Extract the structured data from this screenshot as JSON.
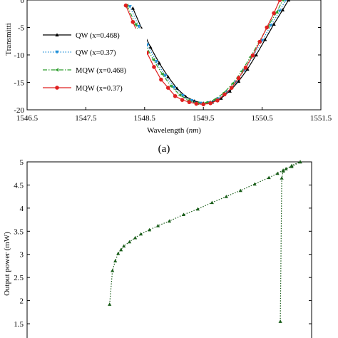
{
  "chart_data": [
    {
      "type": "line",
      "panel_label": "(a)",
      "xlabel_prefix": "Wavelength (",
      "xlabel_unit": "nm",
      "xlabel_suffix": ")",
      "ylabel": "Transmitti",
      "xlim": [
        1546.5,
        1551.5
      ],
      "ylim": [
        -20,
        0
      ],
      "xticks": [
        "1546.5",
        "1547.5",
        "1548.5",
        "1549.5",
        "1550.5",
        "1551.5"
      ],
      "xtick_values": [
        1546.5,
        1547.5,
        1548.5,
        1549.5,
        1550.5,
        1551.5
      ],
      "yticks": [
        "0",
        "-5",
        "-10",
        "-15",
        "-20"
      ],
      "ytick_values": [
        0,
        -5,
        -10,
        -15,
        -20
      ],
      "legend_placement": "left",
      "series": [
        {
          "name": "QW (x=0.468)",
          "color": "#000000",
          "marker": "triangle-up",
          "dash": "solid",
          "x": [
            1548.3,
            1548.45,
            1548.6,
            1548.75,
            1548.9,
            1549.05,
            1549.2,
            1549.35,
            1549.5,
            1549.65,
            1549.8,
            1549.95,
            1550.1,
            1550.25,
            1550.4,
            1550.55,
            1550.7,
            1550.85,
            1550.95
          ],
          "y": [
            -1.5,
            -5.2,
            -8.6,
            -11.5,
            -14.0,
            -16.1,
            -17.6,
            -18.4,
            -18.8,
            -18.6,
            -17.9,
            -16.6,
            -14.8,
            -12.6,
            -10.0,
            -7.2,
            -4.4,
            -1.8,
            0
          ]
        },
        {
          "name": "QW  (x=0.37)",
          "color": "#1f8fd8",
          "marker": "triangle-down",
          "dash": "dotted",
          "x": [
            1548.25,
            1548.4,
            1548.55,
            1548.7,
            1548.85,
            1549.0,
            1549.15,
            1549.3,
            1549.45,
            1549.6,
            1549.75,
            1549.9,
            1550.05,
            1550.2,
            1550.35,
            1550.5,
            1550.65,
            1550.8,
            1550.9
          ],
          "y": [
            -1.2,
            -4.8,
            -8.2,
            -11.2,
            -13.8,
            -15.9,
            -17.4,
            -18.3,
            -18.8,
            -18.7,
            -18.0,
            -16.8,
            -15.0,
            -12.8,
            -10.2,
            -7.4,
            -4.6,
            -2.0,
            0
          ]
        },
        {
          "name": "MQW (x=0.468)",
          "color": "#2e9e2e",
          "marker": "triangle-left",
          "dash": "dashdot",
          "x": [
            1548.2,
            1548.35,
            1548.5,
            1548.65,
            1548.8,
            1548.95,
            1549.1,
            1549.25,
            1549.4,
            1549.55,
            1549.7,
            1549.85,
            1550.0,
            1550.15,
            1550.3,
            1550.45,
            1550.6,
            1550.75,
            1550.85
          ],
          "y": [
            -1.0,
            -4.5,
            -7.9,
            -10.9,
            -13.5,
            -15.7,
            -17.3,
            -18.3,
            -18.8,
            -18.7,
            -18.1,
            -16.9,
            -15.2,
            -13.0,
            -10.4,
            -7.6,
            -4.8,
            -2.2,
            0
          ]
        },
        {
          "name": "MQW (x=0.37)",
          "color": "#e02020",
          "marker": "circle",
          "dash": "solid",
          "x": [
            1548.18,
            1548.3,
            1548.42,
            1548.54,
            1548.66,
            1548.78,
            1548.9,
            1549.02,
            1549.14,
            1549.26,
            1549.38,
            1549.5,
            1549.62,
            1549.74,
            1549.86,
            1549.98,
            1550.1,
            1550.22,
            1550.34,
            1550.46,
            1550.58,
            1550.7,
            1550.8
          ],
          "y": [
            -1.0,
            -4.0,
            -6.9,
            -9.6,
            -12.2,
            -14.5,
            -16.0,
            -17.5,
            -18.2,
            -18.6,
            -18.9,
            -19.0,
            -18.8,
            -18.3,
            -17.2,
            -16.0,
            -14.2,
            -12.3,
            -10.1,
            -7.6,
            -5.0,
            -2.4,
            0
          ]
        }
      ]
    },
    {
      "type": "line",
      "ylabel": "Output power (mW)",
      "ylim": [
        1.3,
        5
      ],
      "yticks": [
        "5",
        "4.5",
        "4",
        "3.5",
        "3",
        "2.5",
        "2",
        "1.5"
      ],
      "ytick_values": [
        5,
        4.5,
        4,
        3.5,
        3,
        2.5,
        2,
        1.5
      ],
      "xlim": [
        0,
        1
      ],
      "series": [
        {
          "name": "",
          "color": "#1a5e1a",
          "marker": "triangle-up",
          "dash": "dotted",
          "x": [
            0.29,
            0.3,
            0.31,
            0.32,
            0.33,
            0.34,
            0.36,
            0.38,
            0.4,
            0.43,
            0.46,
            0.5,
            0.55,
            0.6,
            0.65,
            0.7,
            0.75,
            0.8,
            0.85,
            0.88,
            0.9,
            0.93,
            0.96
          ],
          "y": [
            1.92,
            2.65,
            2.86,
            3.02,
            3.1,
            3.18,
            3.27,
            3.36,
            3.44,
            3.53,
            3.62,
            3.72,
            3.86,
            3.98,
            4.12,
            4.25,
            4.38,
            4.52,
            4.66,
            4.75,
            4.82,
            4.9,
            5.0
          ]
        },
        {
          "name": "",
          "color": "#1a5e1a",
          "marker": "triangle-up",
          "dash": "dotted",
          "x": [
            0.89,
            0.895,
            0.9,
            0.91,
            0.93,
            0.96
          ],
          "y": [
            1.55,
            4.65,
            4.8,
            4.85,
            4.92,
            5.0
          ]
        }
      ]
    }
  ]
}
